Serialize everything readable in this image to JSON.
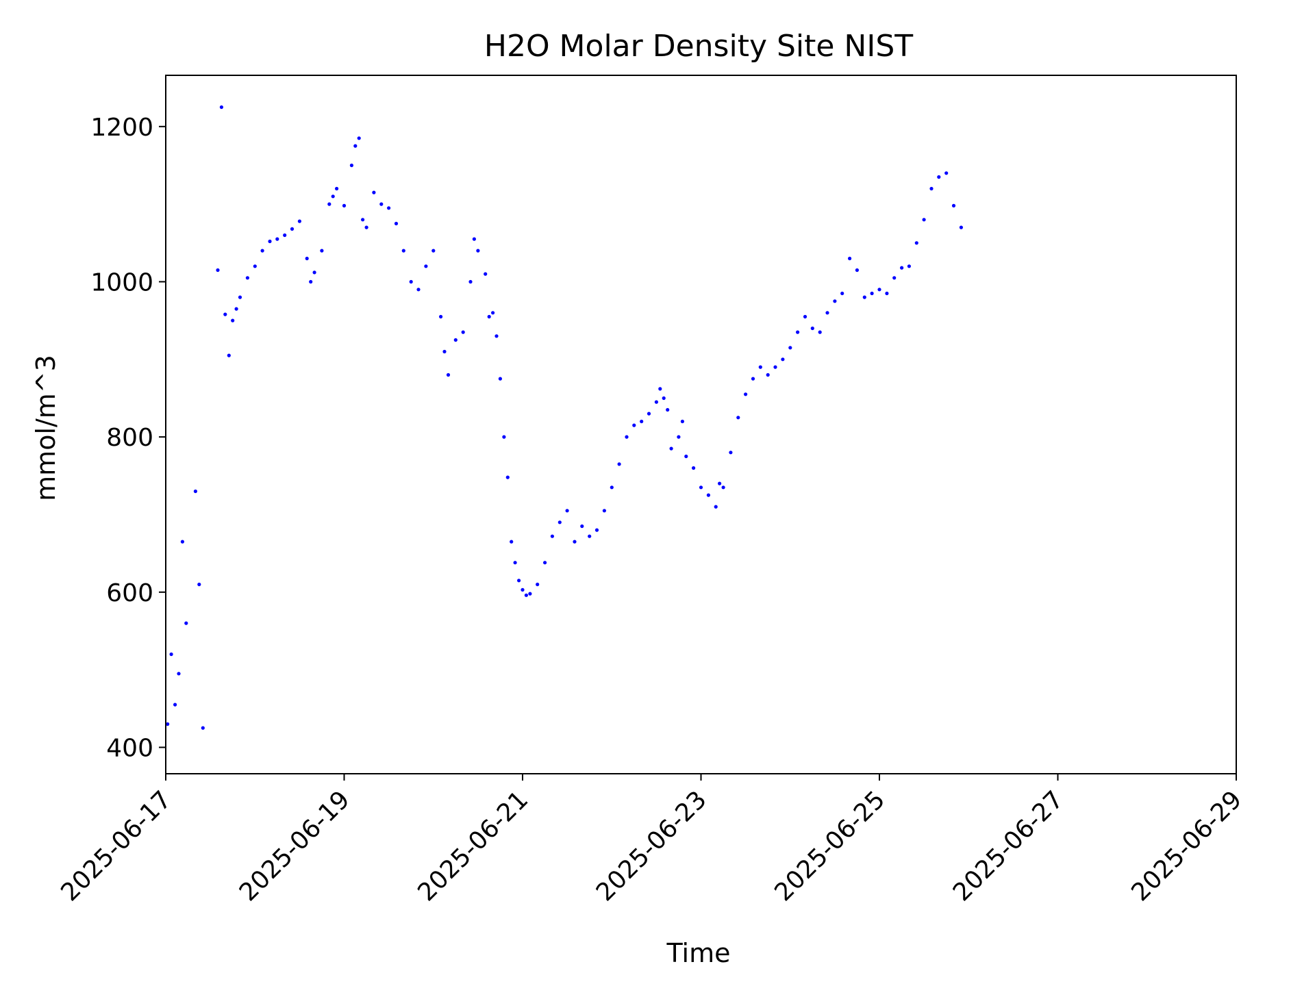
{
  "chart_data": {
    "type": "scatter",
    "title": "H2O Molar Density Site NIST",
    "xlabel": "Time",
    "ylabel": "mmol/m^3",
    "xlim": [
      "2025-06-17",
      "2025-06-29"
    ],
    "ylim": [
      366,
      1266
    ],
    "x_ticks": [
      "2025-06-17",
      "2025-06-19",
      "2025-06-21",
      "2025-06-23",
      "2025-06-25",
      "2025-06-27",
      "2025-06-29"
    ],
    "y_ticks": [
      400,
      600,
      800,
      1000,
      1200
    ],
    "grid": false,
    "legend": "none",
    "marker_color": "#0000ff",
    "series": [
      {
        "points": [
          [
            "2025-06-17T00:30",
            430
          ],
          [
            "2025-06-17T01:30",
            520
          ],
          [
            "2025-06-17T02:30",
            455
          ],
          [
            "2025-06-17T03:30",
            495
          ],
          [
            "2025-06-17T04:30",
            665
          ],
          [
            "2025-06-17T05:30",
            560
          ],
          [
            "2025-06-17T08:00",
            730
          ],
          [
            "2025-06-17T09:00",
            610
          ],
          [
            "2025-06-17T10:00",
            425
          ],
          [
            "2025-06-17T14:00",
            1015
          ],
          [
            "2025-06-17T15:00",
            1225
          ],
          [
            "2025-06-17T16:00",
            958
          ],
          [
            "2025-06-17T17:00",
            905
          ],
          [
            "2025-06-17T18:00",
            950
          ],
          [
            "2025-06-17T19:00",
            965
          ],
          [
            "2025-06-17T20:00",
            980
          ],
          [
            "2025-06-17T22:00",
            1005
          ],
          [
            "2025-06-18T00:00",
            1020
          ],
          [
            "2025-06-18T02:00",
            1040
          ],
          [
            "2025-06-18T04:00",
            1052
          ],
          [
            "2025-06-18T06:00",
            1055
          ],
          [
            "2025-06-18T08:00",
            1060
          ],
          [
            "2025-06-18T10:00",
            1068
          ],
          [
            "2025-06-18T12:00",
            1078
          ],
          [
            "2025-06-18T14:00",
            1030
          ],
          [
            "2025-06-18T15:00",
            1000
          ],
          [
            "2025-06-18T16:00",
            1012
          ],
          [
            "2025-06-18T18:00",
            1040
          ],
          [
            "2025-06-18T20:00",
            1100
          ],
          [
            "2025-06-18T22:00",
            1120
          ],
          [
            "2025-06-19T00:00",
            1098
          ],
          [
            "2025-06-18T21:00",
            1110
          ],
          [
            "2025-06-19T02:00",
            1150
          ],
          [
            "2025-06-19T03:00",
            1175
          ],
          [
            "2025-06-19T04:00",
            1185
          ],
          [
            "2025-06-19T05:00",
            1080
          ],
          [
            "2025-06-19T06:00",
            1070
          ],
          [
            "2025-06-19T08:00",
            1115
          ],
          [
            "2025-06-19T10:00",
            1100
          ],
          [
            "2025-06-19T12:00",
            1095
          ],
          [
            "2025-06-19T14:00",
            1075
          ],
          [
            "2025-06-19T16:00",
            1040
          ],
          [
            "2025-06-19T18:00",
            1000
          ],
          [
            "2025-06-19T20:00",
            990
          ],
          [
            "2025-06-19T22:00",
            1020
          ],
          [
            "2025-06-20T00:00",
            1040
          ],
          [
            "2025-06-20T02:00",
            955
          ],
          [
            "2025-06-20T03:00",
            910
          ],
          [
            "2025-06-20T04:00",
            880
          ],
          [
            "2025-06-20T06:00",
            925
          ],
          [
            "2025-06-20T08:00",
            935
          ],
          [
            "2025-06-20T10:00",
            1000
          ],
          [
            "2025-06-20T11:00",
            1055
          ],
          [
            "2025-06-20T12:00",
            1040
          ],
          [
            "2025-06-20T14:00",
            1010
          ],
          [
            "2025-06-20T15:00",
            955
          ],
          [
            "2025-06-20T16:00",
            960
          ],
          [
            "2025-06-20T17:00",
            930
          ],
          [
            "2025-06-20T18:00",
            875
          ],
          [
            "2025-06-20T19:00",
            800
          ],
          [
            "2025-06-20T20:00",
            748
          ],
          [
            "2025-06-20T21:00",
            665
          ],
          [
            "2025-06-20T22:00",
            638
          ],
          [
            "2025-06-20T23:00",
            615
          ],
          [
            "2025-06-21T00:00",
            603
          ],
          [
            "2025-06-21T01:00",
            596
          ],
          [
            "2025-06-21T02:00",
            598
          ],
          [
            "2025-06-21T04:00",
            610
          ],
          [
            "2025-06-21T06:00",
            638
          ],
          [
            "2025-06-21T08:00",
            672
          ],
          [
            "2025-06-21T10:00",
            690
          ],
          [
            "2025-06-21T12:00",
            705
          ],
          [
            "2025-06-21T14:00",
            665
          ],
          [
            "2025-06-21T16:00",
            685
          ],
          [
            "2025-06-21T18:00",
            672
          ],
          [
            "2025-06-21T20:00",
            680
          ],
          [
            "2025-06-21T22:00",
            705
          ],
          [
            "2025-06-22T00:00",
            735
          ],
          [
            "2025-06-22T02:00",
            765
          ],
          [
            "2025-06-22T04:00",
            800
          ],
          [
            "2025-06-22T06:00",
            815
          ],
          [
            "2025-06-22T08:00",
            820
          ],
          [
            "2025-06-22T10:00",
            830
          ],
          [
            "2025-06-22T12:00",
            845
          ],
          [
            "2025-06-22T13:00",
            862
          ],
          [
            "2025-06-22T14:00",
            850
          ],
          [
            "2025-06-22T15:00",
            835
          ],
          [
            "2025-06-22T16:00",
            785
          ],
          [
            "2025-06-22T18:00",
            800
          ],
          [
            "2025-06-22T19:00",
            820
          ],
          [
            "2025-06-22T20:00",
            775
          ],
          [
            "2025-06-22T22:00",
            760
          ],
          [
            "2025-06-23T00:00",
            735
          ],
          [
            "2025-06-23T02:00",
            725
          ],
          [
            "2025-06-23T04:00",
            710
          ],
          [
            "2025-06-23T05:00",
            740
          ],
          [
            "2025-06-23T06:00",
            735
          ],
          [
            "2025-06-23T08:00",
            780
          ],
          [
            "2025-06-23T10:00",
            825
          ],
          [
            "2025-06-23T12:00",
            855
          ],
          [
            "2025-06-23T14:00",
            875
          ],
          [
            "2025-06-23T16:00",
            890
          ],
          [
            "2025-06-23T18:00",
            880
          ],
          [
            "2025-06-23T20:00",
            890
          ],
          [
            "2025-06-23T22:00",
            900
          ],
          [
            "2025-06-24T00:00",
            915
          ],
          [
            "2025-06-24T02:00",
            935
          ],
          [
            "2025-06-24T04:00",
            955
          ],
          [
            "2025-06-24T06:00",
            940
          ],
          [
            "2025-06-24T08:00",
            935
          ],
          [
            "2025-06-24T10:00",
            960
          ],
          [
            "2025-06-24T12:00",
            975
          ],
          [
            "2025-06-24T14:00",
            985
          ],
          [
            "2025-06-24T16:00",
            1030
          ],
          [
            "2025-06-24T18:00",
            1015
          ],
          [
            "2025-06-24T20:00",
            980
          ],
          [
            "2025-06-24T22:00",
            985
          ],
          [
            "2025-06-25T00:00",
            990
          ],
          [
            "2025-06-25T02:00",
            985
          ],
          [
            "2025-06-25T04:00",
            1005
          ],
          [
            "2025-06-25T06:00",
            1018
          ],
          [
            "2025-06-25T08:00",
            1020
          ],
          [
            "2025-06-25T10:00",
            1050
          ],
          [
            "2025-06-25T12:00",
            1080
          ],
          [
            "2025-06-25T14:00",
            1120
          ],
          [
            "2025-06-25T16:00",
            1135
          ],
          [
            "2025-06-25T18:00",
            1140
          ],
          [
            "2025-06-25T20:00",
            1098
          ],
          [
            "2025-06-25T22:00",
            1070
          ]
        ]
      }
    ]
  }
}
